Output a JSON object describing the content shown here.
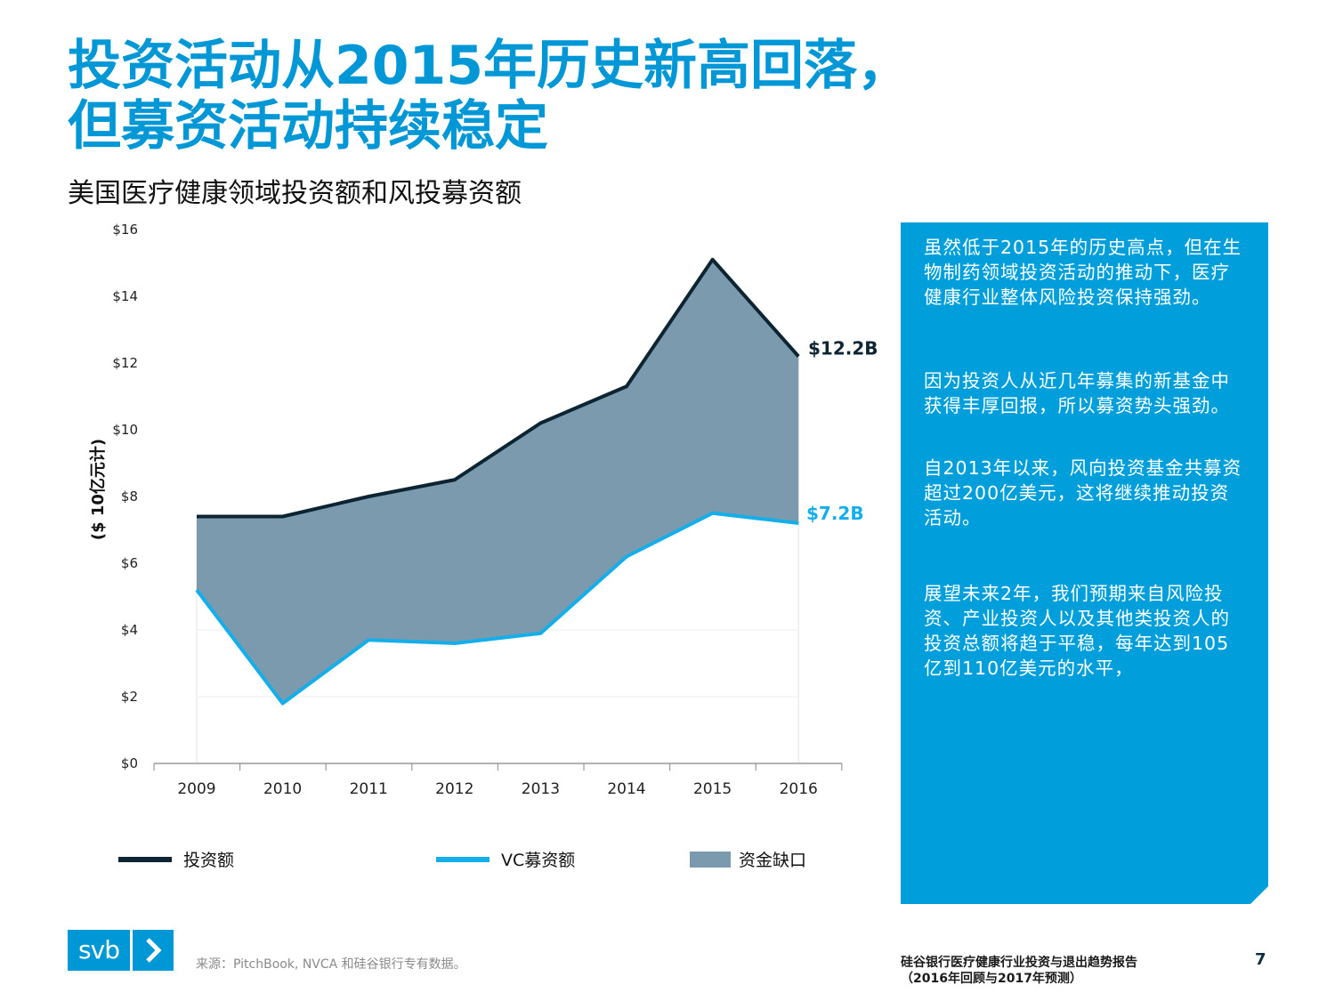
{
  "page": {
    "title_line1": "投资活动从2015年历史新高回落，",
    "title_line2": "但募资活动持续稳定",
    "subtitle": "美国医疗健康领域投资额和风投募资额"
  },
  "chart_data": {
    "type": "area",
    "title": "美国医疗健康领域投资额和风投募资额",
    "ylabel": "($ 10亿元计)",
    "xlabel": "",
    "categories": [
      "2009",
      "2010",
      "2011",
      "2012",
      "2013",
      "2014",
      "2015",
      "2016"
    ],
    "ylim": [
      0,
      16
    ],
    "ytick_labels": [
      "$0",
      "$2",
      "$4",
      "$6",
      "$8",
      "$10",
      "$12",
      "$14",
      "$16"
    ],
    "series": [
      {
        "name": "投资额",
        "color": "#0d2533",
        "values": [
          7.4,
          7.4,
          8.0,
          8.5,
          10.2,
          11.3,
          15.1,
          12.2
        ]
      },
      {
        "name": "VC募资额",
        "color": "#14aeea",
        "values": [
          5.2,
          1.8,
          3.7,
          3.6,
          3.9,
          6.2,
          7.5,
          7.2
        ]
      },
      {
        "name": "资金缺口",
        "color": "#7b9aad",
        "values": [
          2.2,
          5.6,
          4.3,
          4.9,
          6.3,
          5.1,
          7.6,
          5.0
        ]
      }
    ],
    "annotations": {
      "invest_end": "$12.2B",
      "vc_end": "$7.2B"
    },
    "legend": [
      "投资额",
      "VC募资额",
      "资金缺口"
    ],
    "legend_position": "bottom",
    "grid": false
  },
  "panel": {
    "paragraphs": [
      "虽然低于2015年的历史高点，但在生物制药领域投资活动的推动下，医疗健康行业整体风险投资保持强劲。",
      "因为投资人从近几年募集的新基金中获得丰厚回报，所以募资势头强劲。",
      "自2013年以来，风向投资基金共募资超过200亿美元，这将继续推动投资活动。",
      "展望未来2年，我们预期来自风险投资、产业投资人以及其他类投资人的投资总额将趋于平稳，每年达到105亿到110亿美元的水平，"
    ]
  },
  "footer": {
    "logo_text": "svb",
    "source": "来源：PitchBook, NVCA 和硅谷银行专有数据。",
    "report_line1": "硅谷银行医疗健康行业投资与退出趋势报告",
    "report_line2": "（2016年回顾与2017年预测）",
    "page_number": "7"
  },
  "colors": {
    "brand_blue": "#0097d7",
    "panel_blue": "#009fdc",
    "invest_line": "#0d2533",
    "vc_line": "#14aeea",
    "gap_fill": "#7b9aad"
  }
}
